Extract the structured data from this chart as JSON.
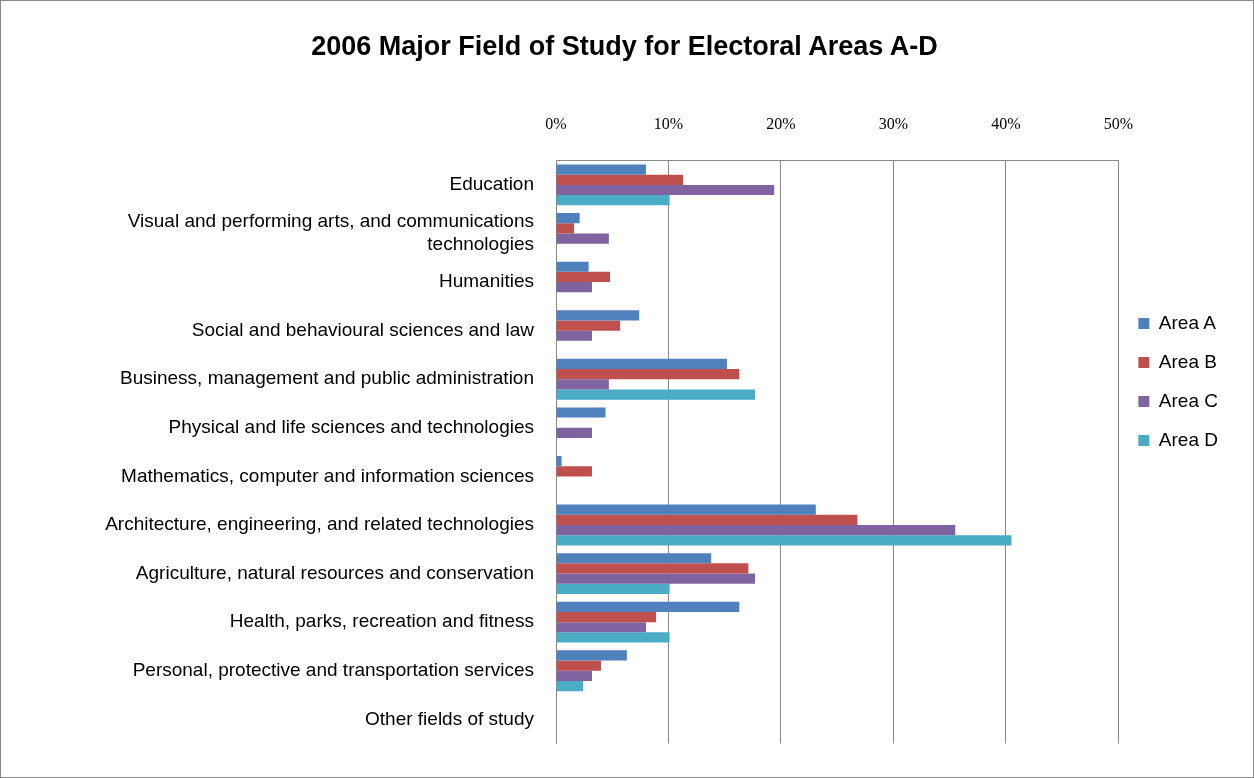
{
  "chart_data": {
    "type": "bar",
    "orientation": "horizontal",
    "title": "2006 Major Field of Study for Electoral Areas A-D",
    "categories": [
      "Education",
      "Visual and performing arts, and communications technologies",
      "Humanities",
      "Social and behavioural sciences and law",
      "Business, management and public administration",
      "Physical and life sciences and technologies",
      "Mathematics, computer and information sciences",
      "Architecture, engineering, and related technologies",
      "Agriculture, natural resources and conservation",
      "Health, parks, recreation and fitness",
      "Personal, protective and transportation services",
      "Other fields of study"
    ],
    "series": [
      {
        "name": "Area A",
        "color": "#4f81bd",
        "values": [
          8.0,
          2.1,
          2.9,
          7.4,
          15.2,
          4.4,
          0.5,
          23.1,
          13.8,
          16.3,
          6.3,
          0
        ]
      },
      {
        "name": "Area B",
        "color": "#c0504d",
        "values": [
          11.3,
          1.6,
          4.8,
          5.7,
          16.3,
          0,
          3.2,
          26.8,
          17.1,
          8.9,
          4.0,
          0
        ]
      },
      {
        "name": "Area C",
        "color": "#8064a2",
        "values": [
          19.4,
          4.7,
          3.2,
          3.2,
          4.7,
          3.2,
          0,
          35.5,
          17.7,
          8.0,
          3.2,
          0
        ]
      },
      {
        "name": "Area D",
        "color": "#4bacc6",
        "values": [
          10.1,
          0,
          0,
          0,
          17.7,
          0,
          0,
          40.5,
          10.1,
          10.1,
          2.4,
          0
        ]
      }
    ],
    "xlim": [
      0,
      50
    ],
    "xticks": [
      {
        "value": 0,
        "label": "0%"
      },
      {
        "value": 10,
        "label": "10%"
      },
      {
        "value": 20,
        "label": "20%"
      },
      {
        "value": 30,
        "label": "30%"
      },
      {
        "value": 40,
        "label": "40%"
      },
      {
        "value": 50,
        "label": "50%"
      }
    ],
    "grid": "x",
    "legend": "right"
  }
}
